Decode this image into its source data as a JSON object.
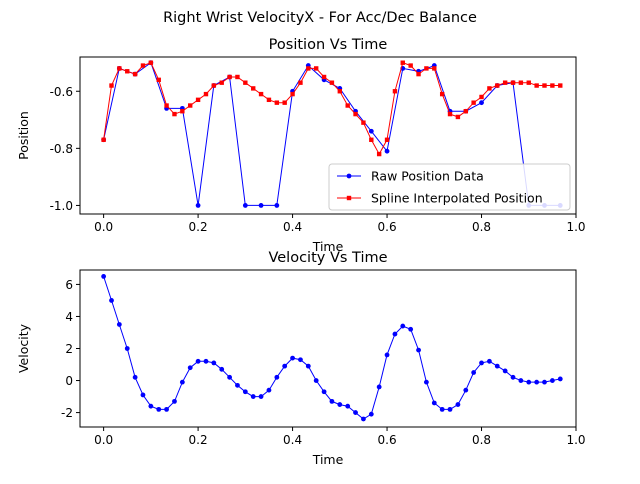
{
  "suptitle": "Right Wrist VelocityX - For Acc/Dec Balance",
  "chart_data": [
    {
      "type": "line",
      "title": "Position Vs Time",
      "xlabel": "Time",
      "ylabel": "Position",
      "xlim": [
        -0.05,
        1.0
      ],
      "ylim": [
        -1.03,
        -0.48
      ],
      "xticks": [
        "0.0",
        "0.2",
        "0.4",
        "0.6",
        "0.8",
        "1.0"
      ],
      "yticks": [
        "-0.6",
        "-0.8",
        "-1.0"
      ],
      "legend": "bottom-right",
      "series": [
        {
          "name": "Raw Position Data",
          "color": "#0000ff",
          "marker": "circle",
          "x": [
            0.0,
            0.0333,
            0.0667,
            0.1,
            0.1333,
            0.1667,
            0.2,
            0.2333,
            0.2667,
            0.3,
            0.3333,
            0.3667,
            0.4,
            0.4333,
            0.4667,
            0.5,
            0.5333,
            0.5667,
            0.6,
            0.6333,
            0.6667,
            0.7,
            0.7333,
            0.7667,
            0.8,
            0.8333,
            0.8667,
            0.9,
            0.9333,
            0.9667
          ],
          "y": [
            -0.77,
            -0.52,
            -0.54,
            -0.5,
            -0.66,
            -0.66,
            -1.0,
            -0.58,
            -0.55,
            -1.0,
            -1.0,
            -1.0,
            -0.6,
            -0.51,
            -0.56,
            -0.59,
            -0.67,
            -0.74,
            -0.81,
            -0.52,
            -0.53,
            -0.51,
            -0.67,
            -0.67,
            -0.64,
            -0.58,
            -0.57,
            -1.0,
            -1.0,
            -1.0
          ]
        },
        {
          "name": "Spline Interpolated Position",
          "color": "#ff0000",
          "marker": "square",
          "x": [
            0.0,
            0.0167,
            0.0333,
            0.05,
            0.0667,
            0.0833,
            0.1,
            0.1167,
            0.1333,
            0.15,
            0.1667,
            0.1833,
            0.2,
            0.2167,
            0.2333,
            0.25,
            0.2667,
            0.2833,
            0.3,
            0.3167,
            0.3333,
            0.35,
            0.3667,
            0.3833,
            0.4,
            0.4167,
            0.4333,
            0.45,
            0.4667,
            0.4833,
            0.5,
            0.5167,
            0.5333,
            0.55,
            0.5667,
            0.5833,
            0.6,
            0.6167,
            0.6333,
            0.65,
            0.6667,
            0.6833,
            0.7,
            0.7167,
            0.7333,
            0.75,
            0.7667,
            0.7833,
            0.8,
            0.8167,
            0.8333,
            0.85,
            0.8667,
            0.8833,
            0.9,
            0.9167,
            0.9333,
            0.95,
            0.9667
          ],
          "y": [
            -0.77,
            -0.58,
            -0.52,
            -0.53,
            -0.54,
            -0.51,
            -0.5,
            -0.56,
            -0.65,
            -0.68,
            -0.67,
            -0.65,
            -0.63,
            -0.61,
            -0.58,
            -0.57,
            -0.55,
            -0.55,
            -0.57,
            -0.59,
            -0.61,
            -0.63,
            -0.64,
            -0.64,
            -0.61,
            -0.57,
            -0.52,
            -0.52,
            -0.55,
            -0.57,
            -0.6,
            -0.65,
            -0.68,
            -0.71,
            -0.77,
            -0.82,
            -0.77,
            -0.6,
            -0.5,
            -0.51,
            -0.54,
            -0.52,
            -0.52,
            -0.61,
            -0.68,
            -0.69,
            -0.67,
            -0.64,
            -0.62,
            -0.59,
            -0.58,
            -0.57,
            -0.57,
            -0.57,
            -0.57,
            -0.58,
            -0.58,
            -0.58,
            -0.58
          ]
        }
      ]
    },
    {
      "type": "line",
      "title": "Velocity Vs Time",
      "xlabel": "Time",
      "ylabel": "Velocity",
      "xlim": [
        -0.05,
        1.0
      ],
      "ylim": [
        -2.9,
        6.9
      ],
      "xticks": [
        "0.0",
        "0.2",
        "0.4",
        "0.6",
        "0.8",
        "1.0"
      ],
      "yticks": [
        "6",
        "4",
        "2",
        "0",
        "-2"
      ],
      "series": [
        {
          "color": "#0000ff",
          "marker": "circle",
          "x": [
            0.0,
            0.0167,
            0.0333,
            0.05,
            0.0667,
            0.0833,
            0.1,
            0.1167,
            0.1333,
            0.15,
            0.1667,
            0.1833,
            0.2,
            0.2167,
            0.2333,
            0.25,
            0.2667,
            0.2833,
            0.3,
            0.3167,
            0.3333,
            0.35,
            0.3667,
            0.3833,
            0.4,
            0.4167,
            0.4333,
            0.45,
            0.4667,
            0.4833,
            0.5,
            0.5167,
            0.5333,
            0.55,
            0.5667,
            0.5833,
            0.6,
            0.6167,
            0.6333,
            0.65,
            0.6667,
            0.6833,
            0.7,
            0.7167,
            0.7333,
            0.75,
            0.7667,
            0.7833,
            0.8,
            0.8167,
            0.8333,
            0.85,
            0.8667,
            0.8833,
            0.9,
            0.9167,
            0.9333,
            0.95,
            0.9667
          ],
          "y": [
            6.5,
            5.0,
            3.5,
            2.0,
            0.2,
            -0.9,
            -1.6,
            -1.8,
            -1.8,
            -1.3,
            -0.1,
            0.8,
            1.2,
            1.2,
            1.1,
            0.7,
            0.2,
            -0.3,
            -0.7,
            -1.0,
            -1.0,
            -0.6,
            0.2,
            0.9,
            1.4,
            1.3,
            0.9,
            0.0,
            -0.7,
            -1.3,
            -1.5,
            -1.6,
            -2.0,
            -2.4,
            -2.1,
            -0.4,
            1.6,
            2.9,
            3.4,
            3.2,
            1.9,
            -0.1,
            -1.4,
            -1.8,
            -1.8,
            -1.5,
            -0.6,
            0.5,
            1.1,
            1.2,
            0.9,
            0.6,
            0.2,
            0.0,
            -0.1,
            -0.1,
            -0.1,
            0.0,
            0.1
          ]
        }
      ]
    }
  ]
}
